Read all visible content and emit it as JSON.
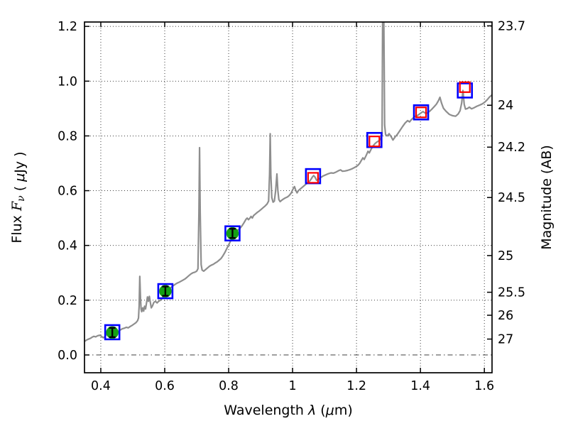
{
  "figure": {
    "background": "#ffffff"
  },
  "chart_data": {
    "type": "line",
    "title": "",
    "xlabel_segments": [
      {
        "t": "Wavelength  ",
        "it": false
      },
      {
        "t": "λ",
        "it": true
      },
      {
        "t": " (",
        "it": false
      },
      {
        "t": "μ",
        "it": true
      },
      {
        "t": "m)",
        "it": false
      }
    ],
    "ylabel_left_segments": [
      {
        "t": "Flux  ",
        "it": false
      },
      {
        "t": "F",
        "it": true,
        "serif": true
      },
      {
        "t": "ν",
        "it": true,
        "serif": true,
        "sub": true
      },
      {
        "t": "  ( ",
        "it": false
      },
      {
        "t": "μ",
        "it": true
      },
      {
        "t": "Jy )",
        "it": false
      }
    ],
    "ylabel_right": "Magnitude (AB)",
    "xlim": [
      0.349,
      1.624
    ],
    "ylim": [
      -0.065,
      1.216
    ],
    "x_ticks": [
      {
        "label": "0.4",
        "value": 0.4
      },
      {
        "label": "0.6",
        "value": 0.6
      },
      {
        "label": "0.8",
        "value": 0.8
      },
      {
        "label": "1",
        "value": 1.0
      },
      {
        "label": "1.2",
        "value": 1.2
      },
      {
        "label": "1.4",
        "value": 1.4
      },
      {
        "label": "1.6",
        "value": 1.6
      }
    ],
    "y_ticks_left": [
      {
        "label": "0.0",
        "value": 0.0
      },
      {
        "label": "0.2",
        "value": 0.2
      },
      {
        "label": "0.4",
        "value": 0.4
      },
      {
        "label": "0.6",
        "value": 0.6
      },
      {
        "label": "0.8",
        "value": 0.8
      },
      {
        "label": "1.0",
        "value": 1.0
      },
      {
        "label": "1.2",
        "value": 1.2
      }
    ],
    "y_ticks_right": [
      {
        "label": "23.7",
        "flux_position": 1.202
      },
      {
        "label": "24",
        "flux_position": 0.912
      },
      {
        "label": "24.2",
        "flux_position": 0.759
      },
      {
        "label": "24.5",
        "flux_position": 0.575
      },
      {
        "label": "25",
        "flux_position": 0.363
      },
      {
        "label": "25.5",
        "flux_position": 0.229
      },
      {
        "label": "26",
        "flux_position": 0.145
      },
      {
        "label": "27",
        "flux_position": 0.058
      }
    ],
    "grid": {
      "show": true,
      "style": "dotted",
      "zero_line_style": "dash-dot"
    },
    "colors": {
      "spectrum": "#8e8e8e",
      "model_square": "#0000ff",
      "observed_square": "#ff0000",
      "observed_point": "#14a014",
      "error_bar": "#000000",
      "axis": "#000000"
    },
    "photometry": [
      {
        "lambda": 0.436,
        "model_flux": 0.083,
        "observed_flux": 0.082,
        "observed_err": 0.017,
        "style": "filled-circle"
      },
      {
        "lambda": 0.602,
        "model_flux": 0.233,
        "observed_flux": 0.233,
        "observed_err": 0.017,
        "style": "filled-circle"
      },
      {
        "lambda": 0.812,
        "model_flux": 0.444,
        "observed_flux": 0.444,
        "observed_err": 0.017,
        "style": "filled-circle"
      },
      {
        "lambda": 1.064,
        "model_flux": 0.653,
        "observed_flux": 0.647,
        "style": "open-square"
      },
      {
        "lambda": 1.256,
        "model_flux": 0.785,
        "observed_flux": 0.78,
        "style": "open-square"
      },
      {
        "lambda": 1.402,
        "model_flux": 0.886,
        "observed_flux": 0.886,
        "style": "open-square"
      },
      {
        "lambda": 1.539,
        "model_flux": 0.966,
        "observed_flux": 0.978,
        "style": "open-square"
      }
    ],
    "spectrum_series": {
      "name": "model-spectrum",
      "points": [
        [
          0.35,
          0.05
        ],
        [
          0.356,
          0.055
        ],
        [
          0.362,
          0.058
        ],
        [
          0.368,
          0.061
        ],
        [
          0.373,
          0.065
        ],
        [
          0.378,
          0.068
        ],
        [
          0.384,
          0.066
        ],
        [
          0.39,
          0.07
        ],
        [
          0.396,
          0.072
        ],
        [
          0.4,
          0.07
        ],
        [
          0.404,
          0.066
        ],
        [
          0.408,
          0.063
        ],
        [
          0.412,
          0.066
        ],
        [
          0.416,
          0.072
        ],
        [
          0.421,
          0.077
        ],
        [
          0.426,
          0.08
        ],
        [
          0.432,
          0.082
        ],
        [
          0.438,
          0.084
        ],
        [
          0.444,
          0.086
        ],
        [
          0.45,
          0.089
        ],
        [
          0.456,
          0.086
        ],
        [
          0.462,
          0.092
        ],
        [
          0.468,
          0.096
        ],
        [
          0.474,
          0.098
        ],
        [
          0.48,
          0.101
        ],
        [
          0.486,
          0.099
        ],
        [
          0.492,
          0.104
        ],
        [
          0.498,
          0.108
        ],
        [
          0.504,
          0.113
        ],
        [
          0.51,
          0.118
        ],
        [
          0.515,
          0.125
        ],
        [
          0.518,
          0.135
        ],
        [
          0.52,
          0.18
        ],
        [
          0.522,
          0.287
        ],
        [
          0.524,
          0.215
        ],
        [
          0.526,
          0.168
        ],
        [
          0.528,
          0.158
        ],
        [
          0.531,
          0.172
        ],
        [
          0.534,
          0.16
        ],
        [
          0.537,
          0.178
        ],
        [
          0.54,
          0.168
        ],
        [
          0.543,
          0.19
        ],
        [
          0.546,
          0.212
        ],
        [
          0.549,
          0.196
        ],
        [
          0.552,
          0.214
        ],
        [
          0.555,
          0.192
        ],
        [
          0.558,
          0.172
        ],
        [
          0.562,
          0.18
        ],
        [
          0.566,
          0.192
        ],
        [
          0.571,
          0.196
        ],
        [
          0.576,
          0.19
        ],
        [
          0.581,
          0.196
        ],
        [
          0.587,
          0.2
        ],
        [
          0.593,
          0.208
        ],
        [
          0.598,
          0.218
        ],
        [
          0.604,
          0.226
        ],
        [
          0.61,
          0.235
        ],
        [
          0.616,
          0.243
        ],
        [
          0.622,
          0.249
        ],
        [
          0.628,
          0.254
        ],
        [
          0.634,
          0.259
        ],
        [
          0.64,
          0.263
        ],
        [
          0.646,
          0.266
        ],
        [
          0.652,
          0.27
        ],
        [
          0.658,
          0.274
        ],
        [
          0.664,
          0.278
        ],
        [
          0.67,
          0.284
        ],
        [
          0.676,
          0.29
        ],
        [
          0.682,
          0.296
        ],
        [
          0.688,
          0.3
        ],
        [
          0.694,
          0.302
        ],
        [
          0.7,
          0.306
        ],
        [
          0.704,
          0.315
        ],
        [
          0.707,
          0.52
        ],
        [
          0.709,
          0.757
        ],
        [
          0.711,
          0.52
        ],
        [
          0.714,
          0.33
        ],
        [
          0.717,
          0.31
        ],
        [
          0.722,
          0.306
        ],
        [
          0.728,
          0.312
        ],
        [
          0.734,
          0.318
        ],
        [
          0.74,
          0.324
        ],
        [
          0.746,
          0.328
        ],
        [
          0.752,
          0.331
        ],
        [
          0.758,
          0.336
        ],
        [
          0.764,
          0.34
        ],
        [
          0.77,
          0.346
        ],
        [
          0.776,
          0.352
        ],
        [
          0.782,
          0.362
        ],
        [
          0.788,
          0.374
        ],
        [
          0.794,
          0.388
        ],
        [
          0.8,
          0.402
        ],
        [
          0.806,
          0.416
        ],
        [
          0.812,
          0.428
        ],
        [
          0.818,
          0.44
        ],
        [
          0.824,
          0.45
        ],
        [
          0.83,
          0.457
        ],
        [
          0.836,
          0.463
        ],
        [
          0.842,
          0.472
        ],
        [
          0.848,
          0.483
        ],
        [
          0.854,
          0.495
        ],
        [
          0.858,
          0.5
        ],
        [
          0.862,
          0.494
        ],
        [
          0.866,
          0.499
        ],
        [
          0.87,
          0.506
        ],
        [
          0.874,
          0.5
        ],
        [
          0.878,
          0.509
        ],
        [
          0.884,
          0.515
        ],
        [
          0.89,
          0.521
        ],
        [
          0.896,
          0.526
        ],
        [
          0.902,
          0.532
        ],
        [
          0.908,
          0.538
        ],
        [
          0.914,
          0.544
        ],
        [
          0.92,
          0.551
        ],
        [
          0.925,
          0.562
        ],
        [
          0.928,
          0.66
        ],
        [
          0.93,
          0.808
        ],
        [
          0.932,
          0.66
        ],
        [
          0.935,
          0.575
        ],
        [
          0.939,
          0.558
        ],
        [
          0.943,
          0.562
        ],
        [
          0.947,
          0.6
        ],
        [
          0.951,
          0.661
        ],
        [
          0.954,
          0.6
        ],
        [
          0.957,
          0.568
        ],
        [
          0.961,
          0.56
        ],
        [
          0.966,
          0.565
        ],
        [
          0.972,
          0.57
        ],
        [
          0.978,
          0.574
        ],
        [
          0.984,
          0.577
        ],
        [
          0.99,
          0.583
        ],
        [
          0.996,
          0.592
        ],
        [
          1.001,
          0.605
        ],
        [
          1.006,
          0.615
        ],
        [
          1.01,
          0.601
        ],
        [
          1.014,
          0.592
        ],
        [
          1.018,
          0.6
        ],
        [
          1.024,
          0.606
        ],
        [
          1.03,
          0.612
        ],
        [
          1.036,
          0.618
        ],
        [
          1.042,
          0.624
        ],
        [
          1.048,
          0.63
        ],
        [
          1.054,
          0.636
        ],
        [
          1.058,
          0.642
        ],
        [
          1.062,
          0.65
        ],
        [
          1.066,
          0.655
        ],
        [
          1.07,
          0.65
        ],
        [
          1.075,
          0.638
        ],
        [
          1.08,
          0.641
        ],
        [
          1.088,
          0.648
        ],
        [
          1.096,
          0.654
        ],
        [
          1.104,
          0.658
        ],
        [
          1.112,
          0.662
        ],
        [
          1.12,
          0.665
        ],
        [
          1.128,
          0.664
        ],
        [
          1.136,
          0.668
        ],
        [
          1.144,
          0.673
        ],
        [
          1.15,
          0.676
        ],
        [
          1.156,
          0.671
        ],
        [
          1.164,
          0.672
        ],
        [
          1.172,
          0.674
        ],
        [
          1.18,
          0.677
        ],
        [
          1.188,
          0.681
        ],
        [
          1.196,
          0.686
        ],
        [
          1.204,
          0.692
        ],
        [
          1.21,
          0.7
        ],
        [
          1.216,
          0.712
        ],
        [
          1.22,
          0.72
        ],
        [
          1.224,
          0.714
        ],
        [
          1.23,
          0.728
        ],
        [
          1.236,
          0.744
        ],
        [
          1.24,
          0.738
        ],
        [
          1.246,
          0.752
        ],
        [
          1.252,
          0.764
        ],
        [
          1.258,
          0.772
        ],
        [
          1.264,
          0.778
        ],
        [
          1.27,
          0.782
        ],
        [
          1.276,
          0.79
        ],
        [
          1.28,
          0.805
        ],
        [
          1.282,
          1.3
        ],
        [
          1.285,
          1.3
        ],
        [
          1.288,
          0.84
        ],
        [
          1.291,
          0.805
        ],
        [
          1.296,
          0.8
        ],
        [
          1.302,
          0.808
        ],
        [
          1.308,
          0.798
        ],
        [
          1.314,
          0.785
        ],
        [
          1.32,
          0.795
        ],
        [
          1.328,
          0.806
        ],
        [
          1.336,
          0.82
        ],
        [
          1.344,
          0.834
        ],
        [
          1.352,
          0.847
        ],
        [
          1.36,
          0.856
        ],
        [
          1.366,
          0.851
        ],
        [
          1.372,
          0.86
        ],
        [
          1.378,
          0.866
        ],
        [
          1.384,
          0.872
        ],
        [
          1.39,
          0.874
        ],
        [
          1.396,
          0.879
        ],
        [
          1.402,
          0.884
        ],
        [
          1.408,
          0.889
        ],
        [
          1.414,
          0.884
        ],
        [
          1.42,
          0.883
        ],
        [
          1.428,
          0.889
        ],
        [
          1.436,
          0.898
        ],
        [
          1.444,
          0.908
        ],
        [
          1.45,
          0.916
        ],
        [
          1.456,
          0.928
        ],
        [
          1.461,
          0.941
        ],
        [
          1.466,
          0.92
        ],
        [
          1.472,
          0.901
        ],
        [
          1.48,
          0.89
        ],
        [
          1.49,
          0.879
        ],
        [
          1.5,
          0.874
        ],
        [
          1.51,
          0.872
        ],
        [
          1.518,
          0.88
        ],
        [
          1.524,
          0.892
        ],
        [
          1.529,
          0.92
        ],
        [
          1.533,
          0.966
        ],
        [
          1.537,
          0.915
        ],
        [
          1.541,
          0.898
        ],
        [
          1.547,
          0.9
        ],
        [
          1.553,
          0.905
        ],
        [
          1.56,
          0.899
        ],
        [
          1.568,
          0.903
        ],
        [
          1.576,
          0.908
        ],
        [
          1.584,
          0.912
        ],
        [
          1.592,
          0.916
        ],
        [
          1.6,
          0.922
        ],
        [
          1.608,
          0.931
        ],
        [
          1.616,
          0.942
        ],
        [
          1.624,
          0.95
        ]
      ]
    }
  }
}
